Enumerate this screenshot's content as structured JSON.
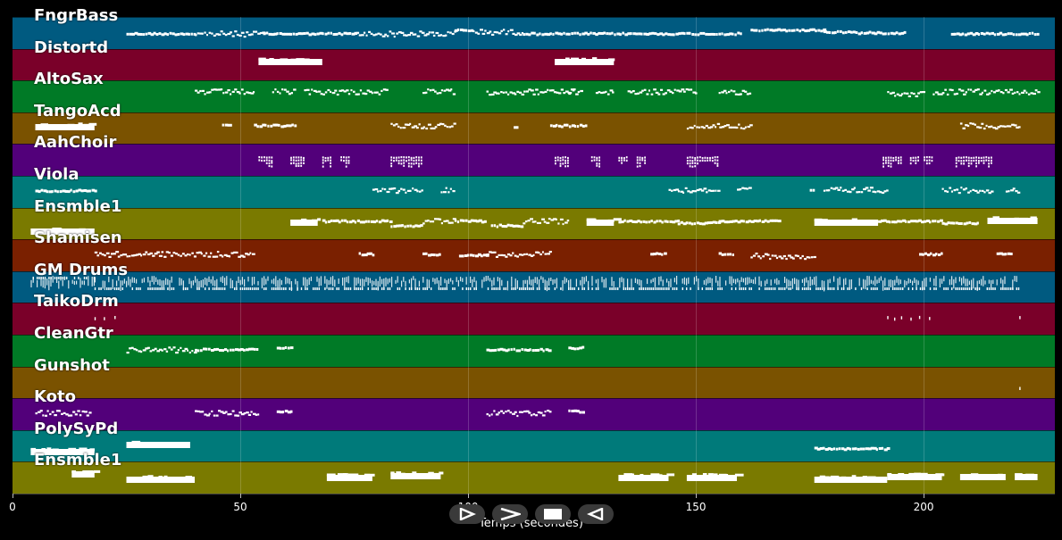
{
  "x_axis": {
    "label": "Temps (secondes)",
    "min": 0,
    "max": 228.8,
    "ticks": [
      0,
      50,
      100,
      150,
      200
    ],
    "tick_labels": [
      "0",
      "50",
      "100",
      "150",
      "200"
    ]
  },
  "controls": [
    {
      "name": "play-button",
      "icon": "play-outline-icon"
    },
    {
      "name": "forward-button",
      "icon": "chevron-right-icon"
    },
    {
      "name": "stop-button",
      "icon": "stop-icon"
    },
    {
      "name": "rewind-button",
      "icon": "play-reverse-outline-icon"
    }
  ],
  "tracks": [
    {
      "name": "FngrBass",
      "color": "#005a80",
      "segments": [
        [
          25,
          40,
          "dense",
          18
        ],
        [
          40,
          55,
          "jagged",
          18
        ],
        [
          55,
          75,
          "dense",
          18
        ],
        [
          75,
          97,
          "jagged",
          18
        ],
        [
          97,
          101,
          "dense",
          14
        ],
        [
          101,
          112,
          "jagged",
          16
        ],
        [
          112,
          160,
          "dense",
          18
        ],
        [
          162,
          178,
          "dense",
          14
        ],
        [
          178,
          185,
          "dense",
          16
        ],
        [
          185,
          196,
          "dense",
          17
        ],
        [
          206,
          225,
          "dense",
          18
        ]
      ]
    },
    {
      "name": "Distortd",
      "color": "#7a0029",
      "segments": [
        [
          54,
          68,
          "block",
          14
        ],
        [
          119,
          132,
          "block",
          14
        ]
      ]
    },
    {
      "name": "AltoSax",
      "color": "#007a26",
      "segments": [
        [
          40,
          53,
          "jagged",
          12
        ],
        [
          57,
          62,
          "jagged",
          12
        ],
        [
          64,
          82,
          "jagged",
          12
        ],
        [
          90,
          97,
          "jagged",
          12
        ],
        [
          104,
          123,
          "jagged",
          12
        ],
        [
          122,
          125,
          "jagged",
          12
        ],
        [
          128,
          132,
          "jagged",
          12
        ],
        [
          135,
          150,
          "jagged",
          12
        ],
        [
          155,
          162,
          "jagged",
          12
        ],
        [
          192,
          200,
          "jagged",
          14
        ],
        [
          202,
          225,
          "jagged",
          12
        ]
      ]
    },
    {
      "name": "TangoAcd",
      "color": "#7a5200",
      "segments": [
        [
          5,
          18,
          "block",
          16
        ],
        [
          46,
          48,
          "dense",
          14
        ],
        [
          53,
          62,
          "dense",
          14
        ],
        [
          83,
          97,
          "jagged",
          14
        ],
        [
          110,
          111,
          "dense",
          16
        ],
        [
          118,
          126,
          "dense",
          14
        ],
        [
          148,
          162,
          "jagged",
          14
        ],
        [
          208,
          221,
          "jagged",
          14
        ]
      ]
    },
    {
      "name": "AahChoir",
      "color": "#52007a",
      "segments": [
        [
          54,
          57,
          "chord",
          18
        ],
        [
          61,
          64,
          "chord",
          18
        ],
        [
          68,
          70,
          "chord",
          18
        ],
        [
          72,
          74,
          "chord",
          18
        ],
        [
          83,
          90,
          "chord",
          18
        ],
        [
          119,
          122,
          "chord",
          18
        ],
        [
          127,
          129,
          "chord",
          18
        ],
        [
          133,
          135,
          "chord",
          18
        ],
        [
          137,
          139,
          "chord",
          18
        ],
        [
          148,
          155,
          "chord",
          18
        ],
        [
          191,
          195,
          "chord",
          18
        ],
        [
          197,
          199,
          "chord",
          18
        ],
        [
          200,
          202,
          "chord",
          18
        ],
        [
          207,
          215,
          "chord",
          18
        ]
      ]
    },
    {
      "name": "Viola",
      "color": "#007a7a",
      "segments": [
        [
          5,
          18,
          "dense",
          16
        ],
        [
          79,
          90,
          "jagged",
          15
        ],
        [
          94,
          97,
          "jagged",
          15
        ],
        [
          144,
          155,
          "jagged",
          15
        ],
        [
          159,
          162,
          "jagged",
          15
        ],
        [
          175,
          176,
          "dense",
          16
        ],
        [
          178,
          192,
          "jagged",
          15
        ],
        [
          204,
          215,
          "jagged",
          15
        ],
        [
          218,
          221,
          "jagged",
          15
        ]
      ]
    },
    {
      "name": "Ensmble1",
      "color": "#7a7a00",
      "segments": [
        [
          4,
          18,
          "block",
          26
        ],
        [
          61,
          67,
          "block",
          16
        ],
        [
          68,
          83,
          "dense",
          14
        ],
        [
          83,
          90,
          "dense",
          19
        ],
        [
          90,
          97,
          "jagged",
          14
        ],
        [
          97,
          104,
          "dense",
          14
        ],
        [
          105,
          112,
          "dense",
          19
        ],
        [
          112,
          122,
          "jagged",
          14
        ],
        [
          126,
          132,
          "block",
          16
        ],
        [
          133,
          146,
          "dense",
          14
        ],
        [
          146,
          155,
          "dense",
          16
        ],
        [
          155,
          168,
          "dense",
          14
        ],
        [
          176,
          190,
          "block",
          16
        ],
        [
          190,
          204,
          "dense",
          14
        ],
        [
          204,
          212,
          "dense",
          16
        ],
        [
          214,
          225,
          "block",
          14
        ]
      ]
    },
    {
      "name": "Shamisen",
      "color": "#7a2000",
      "segments": [
        [
          18,
          25,
          "jagged",
          16
        ],
        [
          25,
          53,
          "jagged",
          16
        ],
        [
          76,
          79,
          "dense",
          16
        ],
        [
          90,
          94,
          "dense",
          16
        ],
        [
          98,
          104,
          "dense",
          17
        ],
        [
          104,
          118,
          "jagged",
          16
        ],
        [
          140,
          143,
          "dense",
          16
        ],
        [
          155,
          158,
          "dense",
          16
        ],
        [
          162,
          176,
          "jagged",
          18
        ],
        [
          199,
          204,
          "dense",
          16
        ],
        [
          216,
          219,
          "dense",
          16
        ]
      ]
    },
    {
      "name": "GM Drums",
      "color": "#005a80",
      "segments": [
        [
          4,
          18,
          "drums",
          6
        ],
        [
          18,
          221,
          "drums",
          18
        ]
      ]
    },
    {
      "name": "TaikoDrm",
      "color": "#7a0029",
      "segments": [
        [
          18,
          24,
          "sparse",
          16
        ],
        [
          192,
          203,
          "sparse",
          16
        ],
        [
          221,
          222,
          "sparse",
          16
        ]
      ]
    },
    {
      "name": "CleanGtr",
      "color": "#007a26",
      "segments": [
        [
          25,
          40,
          "jagged",
          16
        ],
        [
          40,
          54,
          "dense",
          16
        ],
        [
          58,
          61,
          "dense",
          14
        ],
        [
          104,
          118,
          "dense",
          16
        ],
        [
          122,
          125,
          "dense",
          14
        ]
      ]
    },
    {
      "name": "Gunshot",
      "color": "#7a5200",
      "segments": [
        [
          221,
          222,
          "sparse",
          24
        ]
      ]
    },
    {
      "name": "Koto",
      "color": "#52007a",
      "segments": [
        [
          5,
          17,
          "jagged",
          16
        ],
        [
          40,
          54,
          "jagged",
          16
        ],
        [
          58,
          61,
          "dense",
          14
        ],
        [
          104,
          118,
          "jagged",
          16
        ],
        [
          122,
          125,
          "dense",
          14
        ]
      ]
    },
    {
      "name": "PolySyPd",
      "color": "#007a7a",
      "segments": [
        [
          4,
          18,
          "block",
          24
        ],
        [
          25,
          39,
          "block",
          16
        ],
        [
          176,
          192,
          "dense",
          20
        ]
      ]
    },
    {
      "name": "Ensmble1",
      "color": "#7a7a00",
      "segments": [
        [
          13,
          18,
          "block",
          14
        ],
        [
          25,
          40,
          "block",
          20
        ],
        [
          69,
          79,
          "block",
          18
        ],
        [
          83,
          94,
          "block",
          16
        ],
        [
          133,
          144,
          "block",
          18
        ],
        [
          148,
          159,
          "block",
          18
        ],
        [
          176,
          192,
          "block",
          20
        ],
        [
          192,
          204,
          "block",
          17
        ],
        [
          208,
          218,
          "block",
          17
        ],
        [
          220,
          225,
          "block",
          17
        ]
      ]
    }
  ]
}
